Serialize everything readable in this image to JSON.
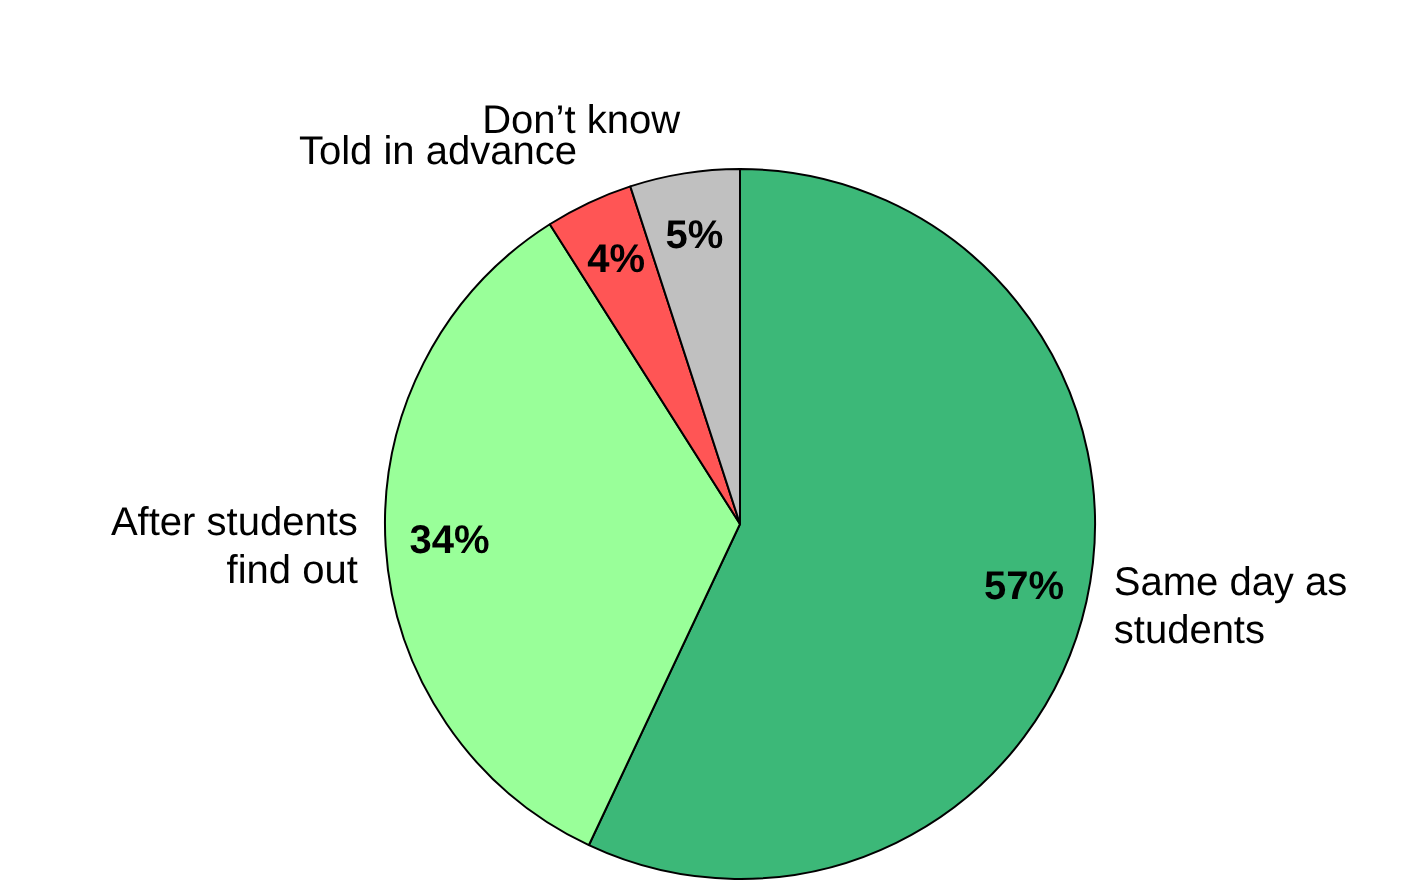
{
  "chart_data": {
    "type": "pie",
    "categories": [
      "Same day as students",
      "After students find out",
      "Told in advance",
      "Don’t know"
    ],
    "values": [
      57,
      34,
      4,
      5
    ],
    "value_labels": [
      "57%",
      "34%",
      "4%",
      "5%"
    ],
    "colors": [
      "#3cb878",
      "#99ff99",
      "#ff5555",
      "#c0c0c0"
    ],
    "legend": false
  }
}
